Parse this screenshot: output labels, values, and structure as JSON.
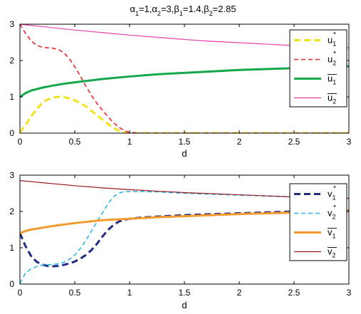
{
  "title": {
    "parts": [
      {
        "t": "α"
      },
      {
        "t": "1",
        "sub": true
      },
      {
        "t": "=1,"
      },
      {
        "t": "α"
      },
      {
        "t": "2",
        "sub": true
      },
      {
        "t": "=3,"
      },
      {
        "t": "β"
      },
      {
        "t": "1",
        "sub": true
      },
      {
        "t": "=1.4,"
      },
      {
        "t": "β"
      },
      {
        "t": "2",
        "sub": true
      },
      {
        "t": "=2.85"
      }
    ]
  },
  "chart_data": [
    {
      "type": "line",
      "xlabel": "d",
      "ylabel": "",
      "xlim": [
        0,
        3
      ],
      "ylim": [
        0,
        3
      ],
      "xticks": [
        "0",
        "0.5",
        "1",
        "1.5",
        "2",
        "2.5",
        "3"
      ],
      "yticks": [
        "0",
        "1",
        "2",
        "3"
      ],
      "grid": false,
      "legend_position": "top-right",
      "series": [
        {
          "name": "u1*",
          "legend_base": "u",
          "legend_sub": "1",
          "legend_sup": "*",
          "legend_bar": false,
          "color": "#f2e21e",
          "dash": "dashed",
          "width": 3,
          "x": [
            0,
            0.05,
            0.1,
            0.15,
            0.2,
            0.25,
            0.3,
            0.35,
            0.4,
            0.45,
            0.5,
            0.55,
            0.6,
            0.65,
            0.7,
            0.75,
            0.8,
            0.85,
            0.9,
            0.95,
            1.0,
            1.05,
            1.5,
            2.0,
            2.5,
            3.0
          ],
          "y": [
            0.02,
            0.22,
            0.45,
            0.65,
            0.82,
            0.92,
            0.98,
            1.0,
            0.99,
            0.96,
            0.9,
            0.83,
            0.74,
            0.62,
            0.5,
            0.38,
            0.26,
            0.15,
            0.07,
            0.02,
            0,
            0,
            0,
            0,
            0,
            0
          ]
        },
        {
          "name": "u2*",
          "legend_base": "u",
          "legend_sub": "2",
          "legend_sup": "*",
          "legend_bar": false,
          "color": "#e8262b",
          "dash": "dashed",
          "width": 1.6,
          "x": [
            0,
            0.05,
            0.1,
            0.15,
            0.2,
            0.25,
            0.3,
            0.35,
            0.4,
            0.45,
            0.5,
            0.55,
            0.6,
            0.65,
            0.7,
            0.75,
            0.8,
            0.85,
            0.9,
            0.95,
            1.0,
            1.05,
            1.1,
            1.5,
            2.0,
            2.5,
            3.0
          ],
          "y": [
            3.0,
            2.75,
            2.55,
            2.42,
            2.37,
            2.35,
            2.34,
            2.3,
            2.22,
            2.05,
            1.83,
            1.58,
            1.3,
            1.05,
            0.83,
            0.64,
            0.46,
            0.3,
            0.17,
            0.07,
            0.02,
            0.01,
            0,
            0,
            0,
            0,
            0
          ]
        },
        {
          "name": "ū1",
          "legend_base": "u",
          "legend_sub": "1",
          "legend_sup": "",
          "legend_bar": true,
          "color": "#14a84b",
          "dash": "solid",
          "width": 3,
          "x": [
            0,
            0.05,
            0.1,
            0.2,
            0.3,
            0.4,
            0.5,
            0.75,
            1.0,
            1.25,
            1.5,
            2.0,
            2.5,
            3.0
          ],
          "y": [
            1.0,
            1.1,
            1.17,
            1.25,
            1.31,
            1.36,
            1.4,
            1.49,
            1.56,
            1.62,
            1.66,
            1.74,
            1.79,
            1.84
          ]
        },
        {
          "name": "ū2",
          "legend_base": "u",
          "legend_sub": "2",
          "legend_sup": "",
          "legend_bar": true,
          "color": "#e83fae",
          "dash": "solid",
          "width": 1.2,
          "x": [
            0,
            0.25,
            0.5,
            0.75,
            1.0,
            1.25,
            1.5,
            1.75,
            2.0,
            2.25,
            2.5,
            2.75,
            3.0
          ],
          "y": [
            3.0,
            2.92,
            2.84,
            2.77,
            2.7,
            2.64,
            2.58,
            2.53,
            2.49,
            2.45,
            2.41,
            2.38,
            2.35
          ]
        }
      ]
    },
    {
      "type": "line",
      "xlabel": "d",
      "ylabel": "",
      "xlim": [
        0,
        3
      ],
      "ylim": [
        0,
        3
      ],
      "xticks": [
        "0",
        "0.5",
        "1",
        "1.5",
        "2",
        "2.5",
        "3"
      ],
      "yticks": [
        "0",
        "1",
        "2",
        "3"
      ],
      "grid": false,
      "legend_position": "right",
      "series": [
        {
          "name": "v1*",
          "legend_base": "v",
          "legend_sub": "1",
          "legend_sup": "*",
          "legend_bar": false,
          "color": "#232a86",
          "dash": "dashed",
          "width": 3,
          "x": [
            0,
            0.05,
            0.1,
            0.15,
            0.2,
            0.25,
            0.3,
            0.35,
            0.4,
            0.45,
            0.5,
            0.55,
            0.6,
            0.65,
            0.7,
            0.75,
            0.8,
            0.85,
            0.9,
            0.95,
            1.0,
            1.1,
            1.2,
            1.5,
            2.0,
            2.5,
            3.0
          ],
          "y": [
            1.4,
            1.05,
            0.78,
            0.62,
            0.54,
            0.5,
            0.49,
            0.5,
            0.53,
            0.57,
            0.62,
            0.7,
            0.8,
            0.93,
            1.1,
            1.3,
            1.48,
            1.62,
            1.72,
            1.77,
            1.8,
            1.83,
            1.85,
            1.9,
            1.95,
            2.0,
            2.02
          ]
        },
        {
          "name": "v2*",
          "legend_base": "v",
          "legend_sub": "2",
          "legend_sup": "*",
          "legend_bar": false,
          "color": "#29b6e6",
          "dash": "dashed",
          "width": 1.6,
          "x": [
            0,
            0.05,
            0.1,
            0.15,
            0.2,
            0.25,
            0.3,
            0.35,
            0.4,
            0.45,
            0.5,
            0.55,
            0.6,
            0.65,
            0.7,
            0.75,
            0.8,
            0.85,
            0.9,
            0.95,
            1.0,
            1.1,
            1.25,
            1.5,
            2.0,
            2.5,
            3.0
          ],
          "y": [
            0.02,
            0.3,
            0.42,
            0.48,
            0.52,
            0.53,
            0.54,
            0.56,
            0.6,
            0.68,
            0.8,
            0.98,
            1.2,
            1.45,
            1.7,
            1.95,
            2.2,
            2.4,
            2.5,
            2.55,
            2.55,
            2.55,
            2.54,
            2.5,
            2.45,
            2.4,
            2.36
          ]
        },
        {
          "name": "v̄1",
          "legend_base": "v",
          "legend_sub": "1",
          "legend_sup": "",
          "legend_bar": true,
          "color": "#f39a2f",
          "dash": "solid",
          "width": 3,
          "x": [
            0,
            0.05,
            0.1,
            0.2,
            0.3,
            0.4,
            0.5,
            0.75,
            1.0,
            1.25,
            1.5,
            2.0,
            2.5,
            3.0
          ],
          "y": [
            1.4,
            1.46,
            1.5,
            1.55,
            1.6,
            1.64,
            1.68,
            1.76,
            1.8,
            1.84,
            1.87,
            1.93,
            1.97,
            2.01
          ]
        },
        {
          "name": "v̄2",
          "legend_base": "v",
          "legend_sub": "2",
          "legend_sup": "",
          "legend_bar": true,
          "color": "#9b1b22",
          "dash": "solid",
          "width": 1.2,
          "x": [
            0,
            0.25,
            0.5,
            0.75,
            1.0,
            1.25,
            1.5,
            1.75,
            2.0,
            2.25,
            2.5,
            2.75,
            3.0
          ],
          "y": [
            2.85,
            2.78,
            2.71,
            2.65,
            2.6,
            2.56,
            2.52,
            2.49,
            2.46,
            2.43,
            2.4,
            2.38,
            2.36
          ]
        }
      ]
    }
  ]
}
